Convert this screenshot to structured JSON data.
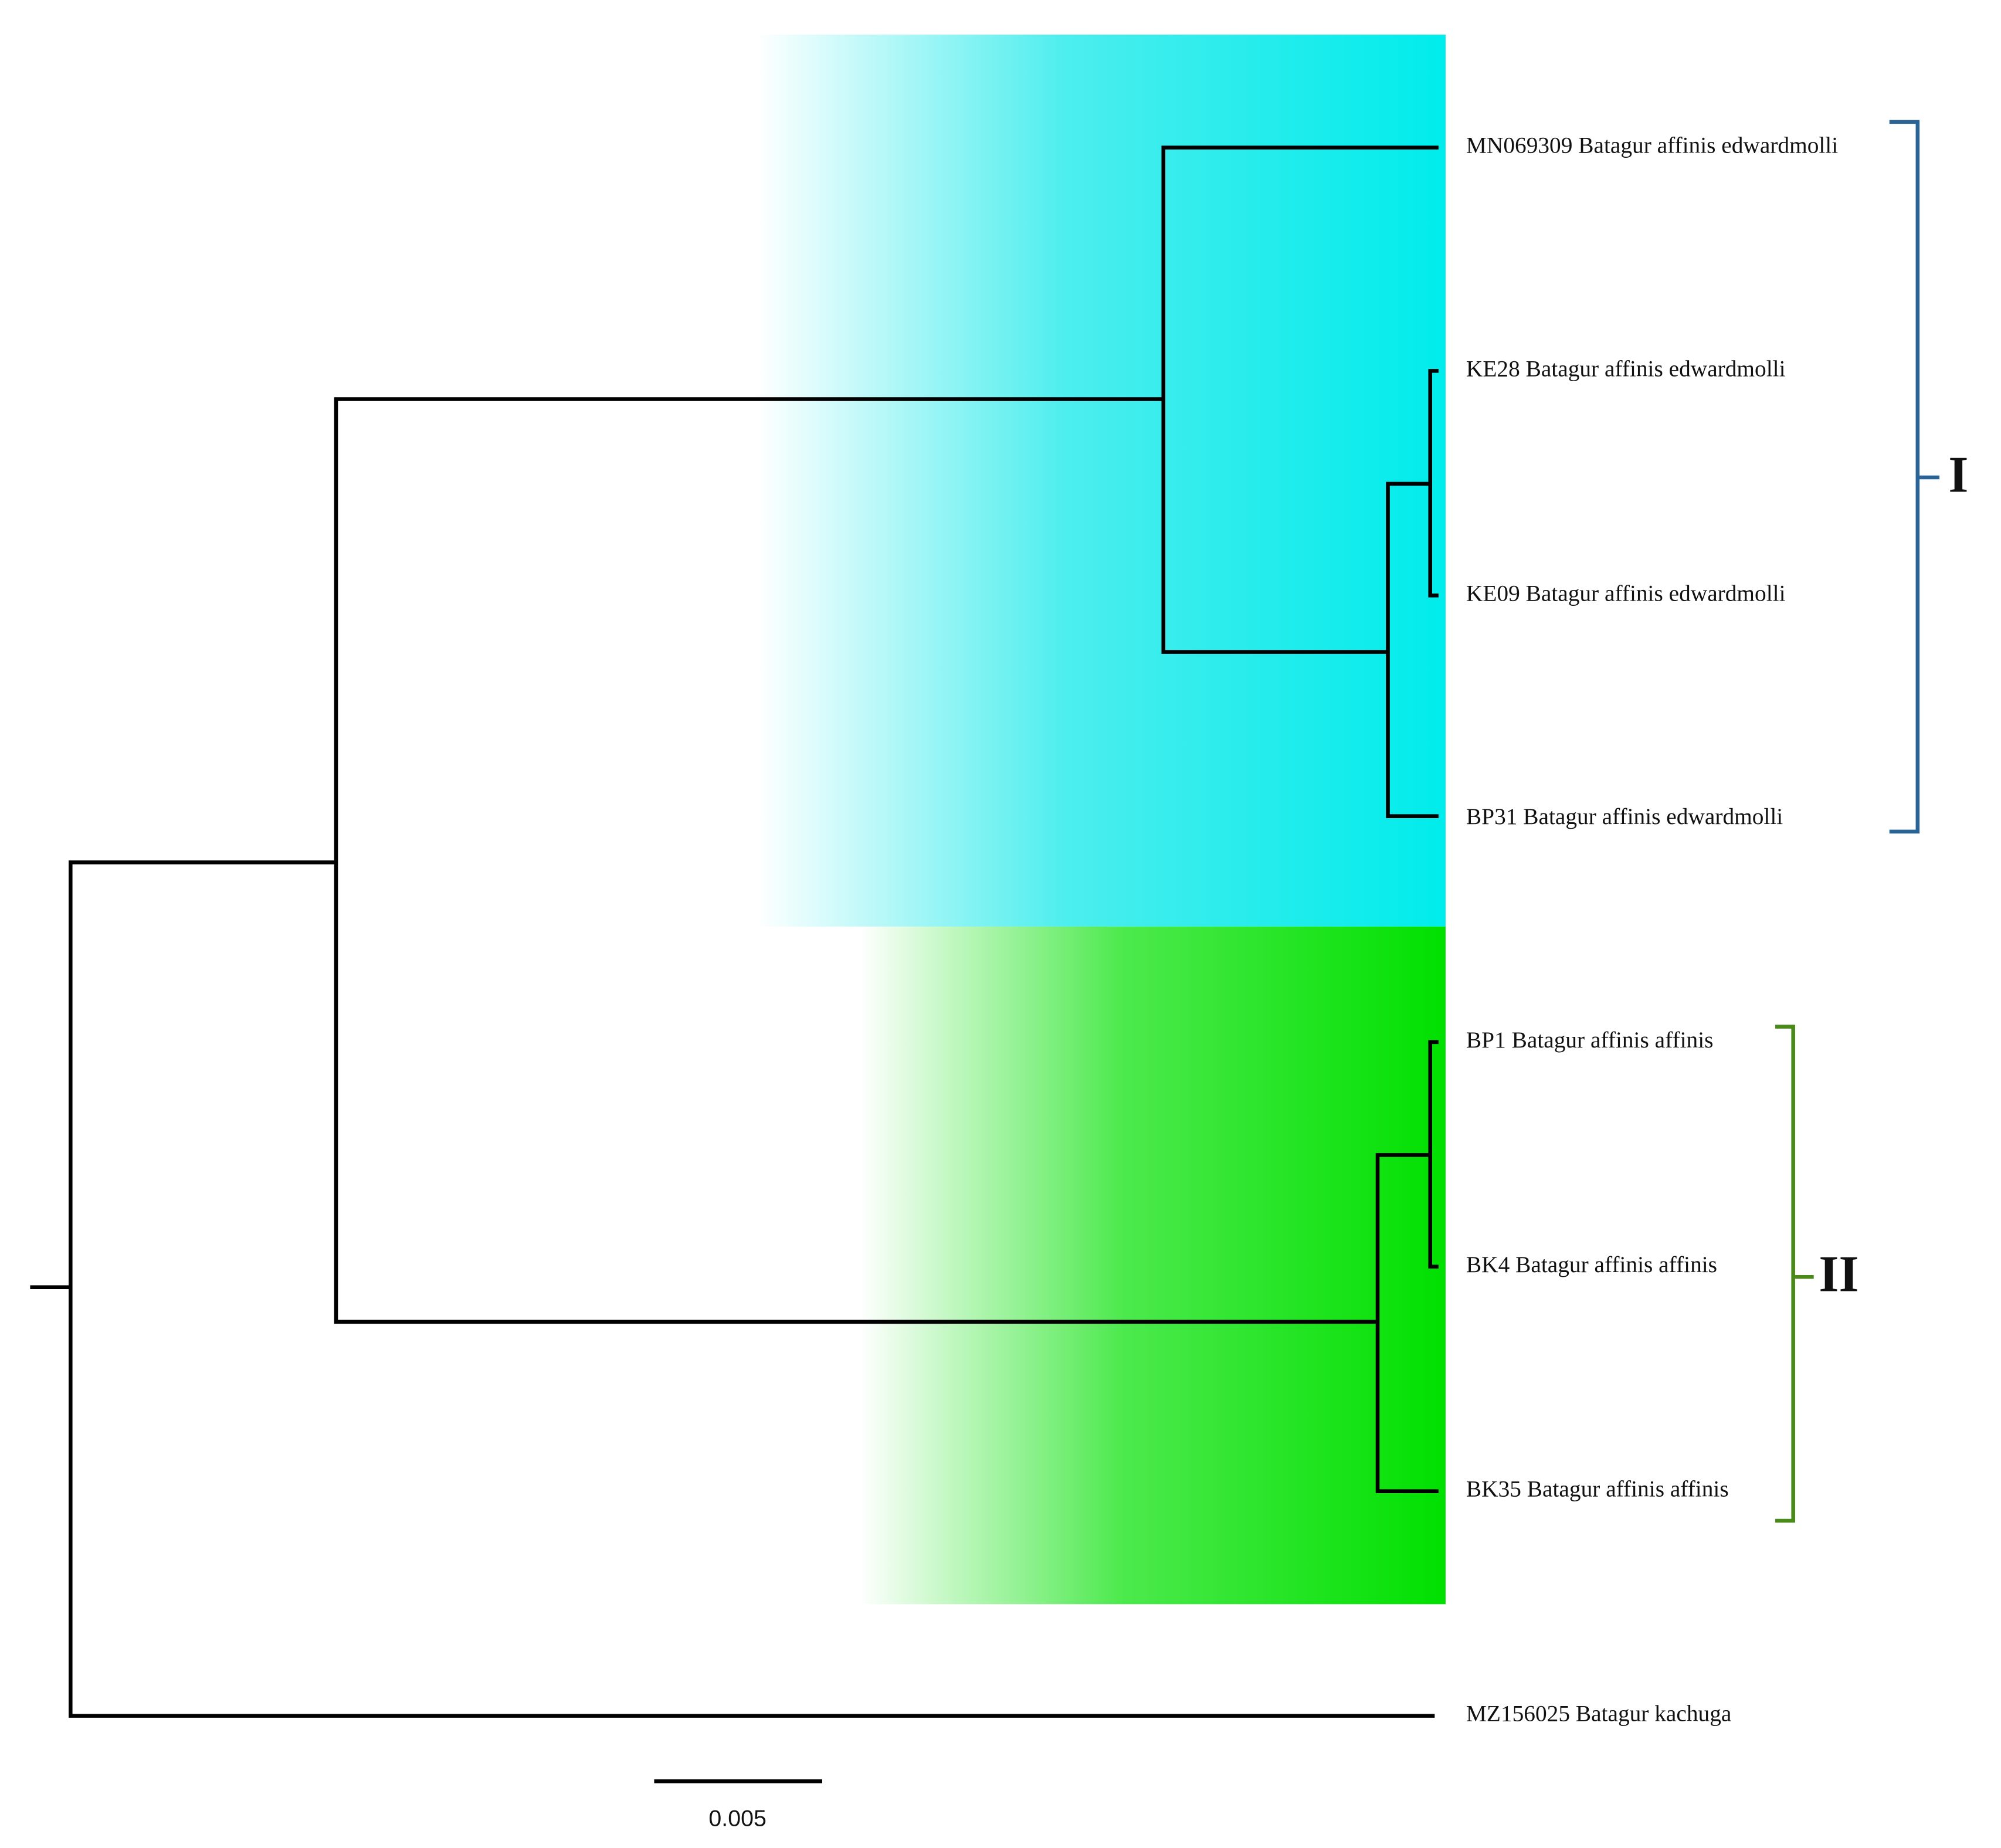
{
  "tree": {
    "leaves": [
      {
        "label": "MN069309 Batagur affinis edwardmolli"
      },
      {
        "label": "KE28 Batagur affinis edwardmolli"
      },
      {
        "label": "KE09 Batagur affinis edwardmolli"
      },
      {
        "label": "BP31 Batagur affinis edwardmolli"
      },
      {
        "label": "BP1 Batagur affinis affinis"
      },
      {
        "label": "BK4 Batagur affinis affinis"
      },
      {
        "label": "BK35 Batagur affinis affinis"
      },
      {
        "label": "MZ156025 Batagur kachuga"
      }
    ],
    "clades": [
      {
        "label": "I"
      },
      {
        "label": "II"
      }
    ],
    "scale_bar": {
      "label": "0.005"
    }
  }
}
